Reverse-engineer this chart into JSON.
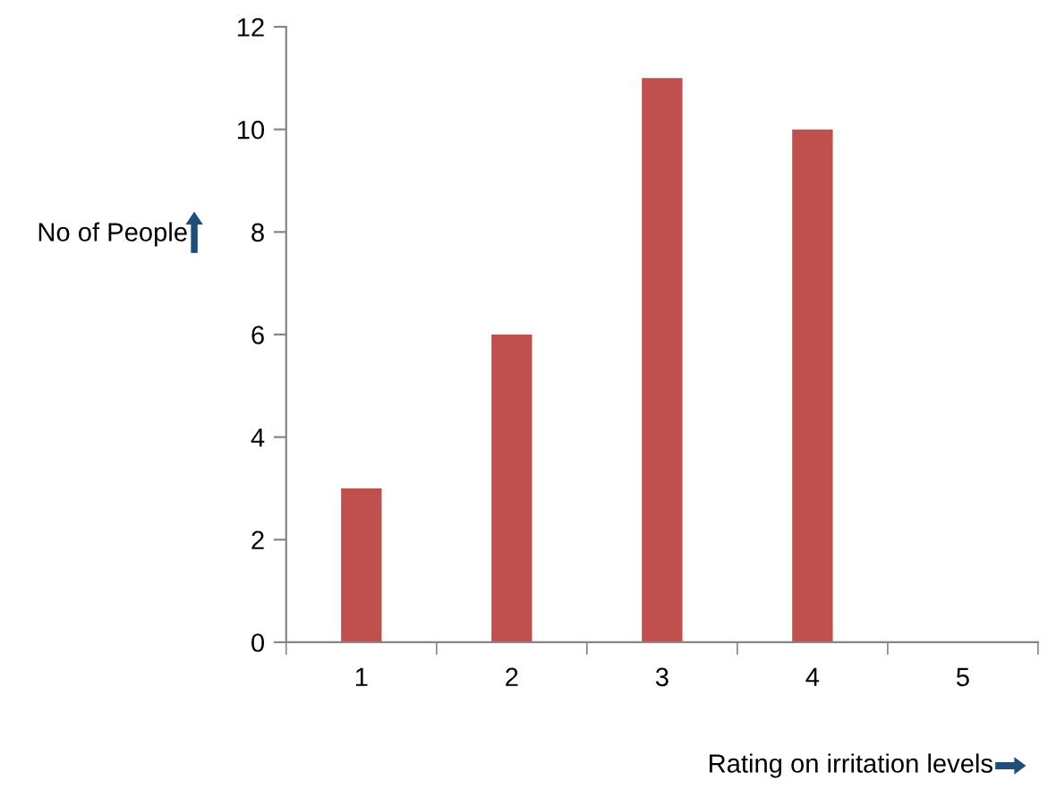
{
  "chart_data": {
    "type": "bar",
    "ylabel": "No of People",
    "xlabel": "Rating on irritation levels",
    "categories": [
      "1",
      "2",
      "3",
      "4",
      "5"
    ],
    "values": [
      3,
      6,
      11,
      10,
      0
    ],
    "color": "#c0504d",
    "ylim": [
      0,
      12
    ],
    "yticks": [
      0,
      2,
      4,
      6,
      8,
      10,
      12
    ],
    "grid": false,
    "legend": false
  }
}
